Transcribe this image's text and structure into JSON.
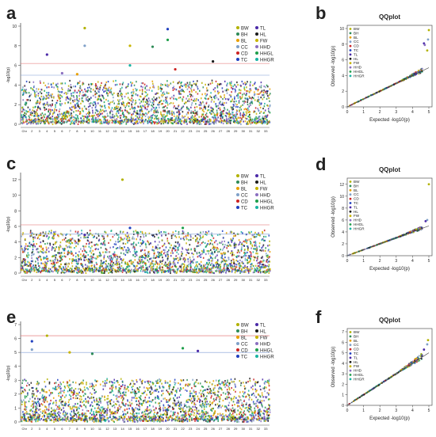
{
  "colors": {
    "threshold_upper": "#e06666",
    "threshold_lower": "#7f9cd6",
    "qq_line": "#333333",
    "axis": "#555555"
  },
  "chart_data": [
    {
      "panel": "a",
      "type": "scatter",
      "kind": "manhattan",
      "ylabel": "-log10(p)",
      "ylim": [
        0,
        10
      ],
      "yticks": [
        0,
        2,
        4,
        6,
        8,
        10
      ],
      "xticks": [
        "Chr",
        "2",
        "3",
        "4",
        "5",
        "6",
        "7",
        "8",
        "9",
        "10",
        "11",
        "12",
        "13",
        "14",
        "15",
        "16",
        "17",
        "18",
        "19",
        "20",
        "21",
        "22",
        "23",
        "24",
        "25",
        "26",
        "27",
        "28",
        "29",
        "30",
        "31",
        "32",
        "33"
      ],
      "thresholds": [
        6.2,
        5.0
      ],
      "legend": [
        {
          "name": "BW",
          "color": "#b2b200"
        },
        {
          "name": "BH",
          "color": "#2e8b57"
        },
        {
          "name": "BL",
          "color": "#e8a000"
        },
        {
          "name": "CC",
          "color": "#7fa0c8"
        },
        {
          "name": "CD",
          "color": "#cc2222"
        },
        {
          "name": "TC",
          "color": "#1f3fbf"
        },
        {
          "name": "TL",
          "color": "#4b2aa8"
        },
        {
          "name": "HL",
          "color": "#1a1a1a"
        },
        {
          "name": "FW",
          "color": "#c8b400"
        },
        {
          "name": "HHD",
          "color": "#8a6fc0"
        },
        {
          "name": "HHGL",
          "color": "#1e9e4a"
        },
        {
          "name": "HHGR",
          "color": "#19b3a3"
        }
      ],
      "peaks": [
        {
          "chr": 9,
          "y": 9.8
        },
        {
          "chr": 20,
          "y": 9.7
        },
        {
          "chr": 20,
          "y": 8.6
        },
        {
          "chr": 9,
          "y": 8.0
        },
        {
          "chr": 15,
          "y": 8.0
        },
        {
          "chr": 18,
          "y": 7.9
        },
        {
          "chr": 4,
          "y": 7.1
        },
        {
          "chr": 15,
          "y": 6.0
        },
        {
          "chr": 21,
          "y": 5.6
        },
        {
          "chr": 6,
          "y": 5.2
        },
        {
          "chr": 8,
          "y": 5.1
        },
        {
          "chr": 26,
          "y": 6.4
        }
      ]
    },
    {
      "panel": "b",
      "type": "scatter",
      "kind": "qq",
      "title": "QQplot",
      "xlabel": "Expected -log10(p)",
      "ylabel": "Observed -log10(p)",
      "xlim": [
        0,
        5
      ],
      "ylim": [
        0,
        10
      ],
      "xticks": [
        0,
        1,
        2,
        3,
        4,
        5
      ],
      "yticks": [
        0,
        2,
        4,
        6,
        8,
        10
      ],
      "legend": [
        "BW",
        "BH",
        "BL",
        "CC",
        "CD",
        "TC",
        "TL",
        "HL",
        "FW",
        "HHD",
        "HHGL",
        "HHGR"
      ],
      "outliers": [
        {
          "x": 5.0,
          "y": 9.8
        },
        {
          "x": 4.95,
          "y": 8.6
        },
        {
          "x": 4.7,
          "y": 8.1
        },
        {
          "x": 4.75,
          "y": 7.9
        },
        {
          "x": 4.9,
          "y": 7.2
        }
      ]
    },
    {
      "panel": "c",
      "type": "scatter",
      "kind": "manhattan",
      "ylabel": "-log10(p)",
      "ylim": [
        0,
        12.5
      ],
      "yticks": [
        0,
        2,
        4,
        6,
        8,
        10,
        12
      ],
      "xticks": [
        "Chr",
        "2",
        "3",
        "4",
        "5",
        "6",
        "7",
        "8",
        "9",
        "10",
        "11",
        "12",
        "13",
        "14",
        "15",
        "16",
        "17",
        "18",
        "19",
        "20",
        "21",
        "22",
        "23",
        "24",
        "25",
        "26",
        "27",
        "28",
        "29",
        "30",
        "31",
        "32",
        "33"
      ],
      "thresholds": [
        6.2,
        5.0
      ],
      "legend": [
        {
          "name": "BW",
          "color": "#b2b200"
        },
        {
          "name": "BH",
          "color": "#2e8b57"
        },
        {
          "name": "BL",
          "color": "#e8a000"
        },
        {
          "name": "CC",
          "color": "#7fa0c8"
        },
        {
          "name": "CD",
          "color": "#cc2222"
        },
        {
          "name": "TC",
          "color": "#1f3fbf"
        },
        {
          "name": "TL",
          "color": "#4b2aa8"
        },
        {
          "name": "HL",
          "color": "#1a1a1a"
        },
        {
          "name": "FW",
          "color": "#c8b400"
        },
        {
          "name": "HHD",
          "color": "#8a6fc0"
        },
        {
          "name": "HHGL",
          "color": "#1e9e4a"
        },
        {
          "name": "HHGR",
          "color": "#19b3a3"
        }
      ],
      "peaks": [
        {
          "chr": 14,
          "y": 12.0
        },
        {
          "chr": 15,
          "y": 5.8
        },
        {
          "chr": 22,
          "y": 5.8
        },
        {
          "chr": 2,
          "y": 5.1
        },
        {
          "chr": 5,
          "y": 5.0
        },
        {
          "chr": 16,
          "y": 5.2
        },
        {
          "chr": 9,
          "y": 4.9
        }
      ]
    },
    {
      "panel": "d",
      "type": "scatter",
      "kind": "qq",
      "title": "QQplot",
      "xlabel": "Expected -log10(p)",
      "ylabel": "Observed -log10(p)",
      "xlim": [
        0,
        5
      ],
      "ylim": [
        0,
        12.5
      ],
      "xticks": [
        0,
        1,
        2,
        3,
        4,
        5
      ],
      "yticks": [
        0,
        2,
        4,
        6,
        8,
        10,
        12
      ],
      "legend": [
        "BW",
        "BH",
        "BL",
        "CC",
        "CD",
        "TC",
        "TL",
        "HL",
        "FW",
        "HHD",
        "HHGL",
        "HHGR"
      ],
      "outliers": [
        {
          "x": 5.0,
          "y": 12.0
        },
        {
          "x": 4.9,
          "y": 6.0
        },
        {
          "x": 4.8,
          "y": 5.8
        }
      ]
    },
    {
      "panel": "e",
      "type": "scatter",
      "kind": "manhattan",
      "ylabel": "-log10(p)",
      "ylim": [
        0,
        7
      ],
      "yticks": [
        0,
        1,
        2,
        3,
        4,
        5,
        6,
        7
      ],
      "xticks": [
        "Chr",
        "2",
        "3",
        "4",
        "5",
        "6",
        "7",
        "8",
        "9",
        "10",
        "11",
        "12",
        "13",
        "14",
        "15",
        "16",
        "17",
        "18",
        "19",
        "20",
        "21",
        "22",
        "23",
        "24",
        "25",
        "26",
        "27",
        "28",
        "29",
        "30",
        "31",
        "32",
        "33"
      ],
      "thresholds": [
        6.2,
        5.0
      ],
      "legend": [
        {
          "name": "BW",
          "color": "#b2b200"
        },
        {
          "name": "BH",
          "color": "#2e8b57"
        },
        {
          "name": "BL",
          "color": "#e8a000"
        },
        {
          "name": "CC",
          "color": "#7fa0c8"
        },
        {
          "name": "CD",
          "color": "#cc2222"
        },
        {
          "name": "TC",
          "color": "#1f3fbf"
        },
        {
          "name": "TL",
          "color": "#4b2aa8"
        },
        {
          "name": "HL",
          "color": "#1a1a1a"
        },
        {
          "name": "FW",
          "color": "#c8b400"
        },
        {
          "name": "HHD",
          "color": "#8a6fc0"
        },
        {
          "name": "HHGL",
          "color": "#1e9e4a"
        },
        {
          "name": "HHGR",
          "color": "#19b3a3"
        }
      ],
      "peaks": [
        {
          "chr": 4,
          "y": 6.2
        },
        {
          "chr": 2,
          "y": 5.8
        },
        {
          "chr": 22,
          "y": 5.3
        },
        {
          "chr": 2,
          "y": 5.2
        },
        {
          "chr": 7,
          "y": 5.0
        },
        {
          "chr": 10,
          "y": 4.9
        },
        {
          "chr": 24,
          "y": 5.1
        }
      ]
    },
    {
      "panel": "f",
      "type": "scatter",
      "kind": "qq",
      "title": "QQplot",
      "xlabel": "Expected -log10(p)",
      "ylabel": "Observed -log10(p)",
      "xlim": [
        0,
        5
      ],
      "ylim": [
        0,
        7
      ],
      "xticks": [
        0,
        1,
        2,
        3,
        4,
        5
      ],
      "yticks": [
        0,
        1,
        2,
        3,
        4,
        5,
        6,
        7
      ],
      "legend": [
        "BW",
        "BH",
        "BL",
        "CC",
        "CD",
        "TC",
        "TL",
        "HL",
        "FW",
        "HHD",
        "HHGL",
        "HHGR"
      ],
      "outliers": [
        {
          "x": 4.95,
          "y": 6.2
        },
        {
          "x": 4.9,
          "y": 5.8
        },
        {
          "x": 4.7,
          "y": 5.3
        }
      ]
    }
  ]
}
